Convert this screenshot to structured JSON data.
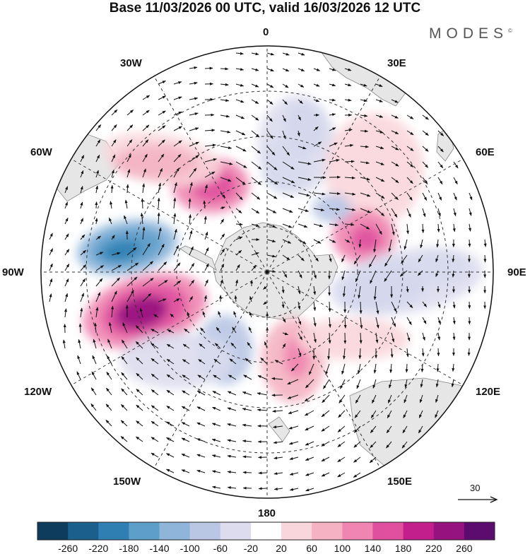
{
  "title": "Base 11/03/2026 00 UTC, valid 16/03/2026 12 UTC",
  "brand": {
    "text": "MODES",
    "mark": "©"
  },
  "longitude_labels": {
    "lon_0": "0",
    "lon_30e": "30E",
    "lon_60e": "60E",
    "lon_90e": "90E",
    "lon_120e": "120E",
    "lon_150e": "150E",
    "lon_180": "180",
    "lon_150w": "150W",
    "lon_120w": "120W",
    "lon_90w": "90W",
    "lon_60w": "60W",
    "lon_30w": "30W"
  },
  "wind_reference": {
    "value": "30",
    "icon": "arrow-right-icon"
  },
  "colorbar": {
    "ticks": [
      "-260",
      "-220",
      "-180",
      "-140",
      "-100",
      "-60",
      "-20",
      "20",
      "60",
      "100",
      "140",
      "180",
      "220",
      "260"
    ],
    "colors": [
      "#0d3c5c",
      "#1b5f8c",
      "#2f7fb2",
      "#5d9fca",
      "#8fb6da",
      "#b9c7e4",
      "#dcdcee",
      "#ffffff",
      "#f9d6dc",
      "#f4b2c2",
      "#ef85b0",
      "#e0509f",
      "#c21f8c",
      "#96127e",
      "#5c0c6e"
    ]
  },
  "field_colors": {
    "land": "#e8e8e8",
    "coast": "#888888",
    "grid": "#333333",
    "vector": "#111111"
  }
}
